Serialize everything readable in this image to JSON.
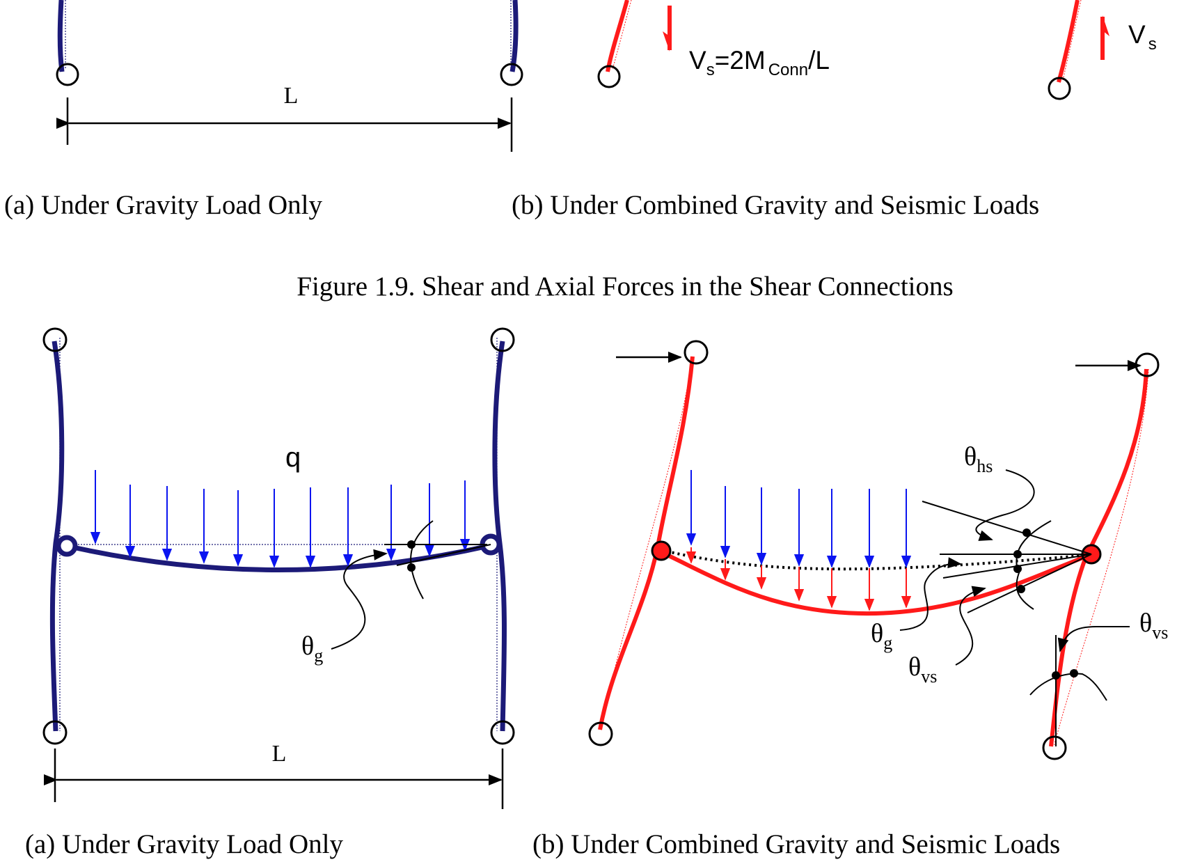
{
  "colors": {
    "gravity_frame": "#1c1a78",
    "seismic_frame": "#ff1a1a",
    "gravity_load": "#0a14f0",
    "black": "#000000"
  },
  "top_figure": {
    "dimension_label": "L",
    "shear_text": {
      "main": "V",
      "sub": "s",
      "eq": "=2M",
      "sub2": "Conn",
      "tail": "/L"
    },
    "right_shear": {
      "main": "V",
      "sub": "s"
    },
    "caption_a": "(a) Under Gravity Load Only",
    "caption_b": "(b) Under Combined Gravity and Seismic Loads",
    "figure_caption": "Figure 1.9. Shear and Axial Forces in the Shear Connections"
  },
  "bottom_figure": {
    "load_label": "q",
    "dimension_label": "L",
    "theta": "θ",
    "theta_g_sub": "g",
    "theta_hs_sub": "hs",
    "theta_vs_sub": "vs",
    "caption_a": "(a) Under Gravity Load Only",
    "caption_b": "(b) Under Combined Gravity and Seismic Loads"
  }
}
